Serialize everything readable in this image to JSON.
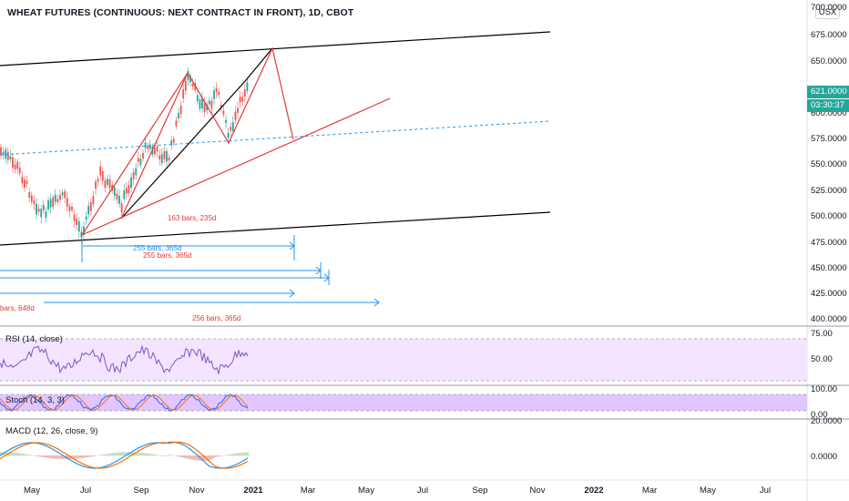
{
  "header": {
    "title": "WHEAT FUTURES (CONTINUOUS: NEXT CONTRACT IN FRONT), 1D, CBOT",
    "currency_button": "USX"
  },
  "price_axis": {
    "ticks": [
      "700.0000",
      "675.0000",
      "650.0000",
      "600.0000",
      "575.0000",
      "550.0000",
      "525.0000",
      "500.0000",
      "475.0000",
      "450.0000",
      "425.0000",
      "400.0000"
    ],
    "last_price": "621.0000",
    "countdown": "03:30:37"
  },
  "panes": {
    "rsi": {
      "label": "RSI (14, close)",
      "ticks": [
        "75.00",
        "50.00"
      ]
    },
    "stoch": {
      "label": "Stoch (14, 3, 3)",
      "ticks": [
        "100.00",
        "0.00"
      ]
    },
    "macd": {
      "label": "MACD (12, 26, close, 9)",
      "ticks": [
        "20.0000",
        "0.0000"
      ]
    }
  },
  "time_axis": {
    "months": [
      "May",
      "Jul",
      "Sep",
      "Nov",
      "2021",
      "Mar",
      "May",
      "Jul",
      "Sep",
      "Nov",
      "2022",
      "Mar",
      "May",
      "Jul"
    ]
  },
  "annotations": {
    "bars_163": "163 bars, 235d",
    "bars_255_a": "255 bars, 365d",
    "bars_255_b": "255 bars, 365d",
    "bars_648": "bars, 648d",
    "bars_256": "256 bars, 365d"
  },
  "colors": {
    "up": "#26a69a",
    "down": "#ef5350",
    "channel": "#000000",
    "trendline": "#e53935",
    "measure": "#2196f3",
    "rsi_line": "#7e57c2",
    "pane_fill": "#f3e5ff"
  }
}
